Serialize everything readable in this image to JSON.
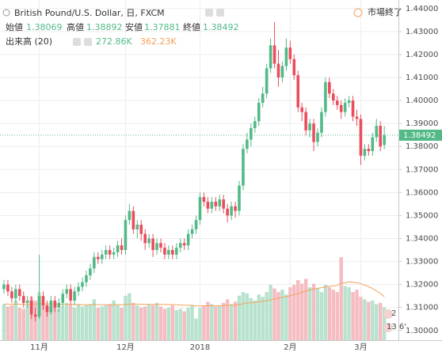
{
  "chart_data": {
    "type": "candlestick",
    "title": "British Pound/U.S. Dollar, 日, FXCM",
    "ohlc_labels": {
      "open": "始値",
      "high": "高値",
      "low": "安値",
      "close": "終値"
    },
    "volume_title": "出来高 (20)",
    "volume_last_label": "272.86K",
    "volume_ma_last_label": "362.23K",
    "status": "市場終了",
    "event_labels": [
      "2",
      "13 6'"
    ],
    "categories": [
      null,
      null,
      null,
      null,
      null,
      null,
      null,
      null,
      null,
      "11月",
      null,
      null,
      null,
      null,
      null,
      null,
      null,
      null,
      null,
      null,
      null,
      null,
      null,
      null,
      null,
      null,
      null,
      null,
      null,
      null,
      null,
      "12月",
      null,
      null,
      null,
      null,
      null,
      null,
      null,
      null,
      null,
      null,
      null,
      null,
      null,
      null,
      null,
      null,
      null,
      null,
      "2018",
      null,
      null,
      null,
      null,
      null,
      null,
      null,
      null,
      null,
      null,
      null,
      null,
      null,
      null,
      null,
      null,
      null,
      null,
      null,
      null,
      null,
      null,
      "2月",
      null,
      null,
      null,
      null,
      null,
      null,
      null,
      null,
      null,
      null,
      null,
      null,
      null,
      null,
      null,
      null,
      null,
      "3月",
      null,
      null,
      null,
      null,
      null,
      null
    ],
    "open": [
      1.318,
      1.32,
      1.317,
      1.314,
      1.318,
      1.315,
      1.312,
      1.313,
      1.307,
      1.306,
      1.315,
      1.311,
      1.308,
      1.313,
      1.31,
      1.312,
      1.316,
      1.318,
      1.313,
      1.317,
      1.319,
      1.321,
      1.324,
      1.327,
      1.332,
      1.331,
      1.333,
      1.335,
      1.333,
      1.334,
      1.337,
      1.335,
      1.348,
      1.352,
      1.344,
      1.346,
      1.342,
      1.338,
      1.34,
      1.335,
      1.338,
      1.336,
      1.333,
      1.335,
      1.333,
      1.336,
      1.338,
      1.337,
      1.342,
      1.344,
      1.348,
      1.358,
      1.356,
      1.353,
      1.356,
      1.354,
      1.357,
      1.353,
      1.35,
      1.354,
      1.352,
      1.363,
      1.379,
      1.383,
      1.388,
      1.391,
      1.399,
      1.403,
      1.414,
      1.424,
      1.416,
      1.41,
      1.415,
      1.423,
      1.418,
      1.411,
      1.397,
      1.395,
      1.387,
      1.39,
      1.382,
      1.386,
      1.395,
      1.408,
      1.403,
      1.4,
      1.398,
      1.395,
      1.399,
      1.4,
      1.393,
      1.392,
      1.376,
      1.379,
      1.378,
      1.384,
      1.389,
      1.38069
    ],
    "high": [
      1.322,
      1.322,
      1.319,
      1.32,
      1.32,
      1.317,
      1.315,
      1.315,
      1.31,
      1.333,
      1.317,
      1.313,
      1.315,
      1.315,
      1.314,
      1.318,
      1.32,
      1.32,
      1.319,
      1.321,
      1.323,
      1.326,
      1.329,
      1.334,
      1.334,
      1.335,
      1.337,
      1.337,
      1.336,
      1.339,
      1.34,
      1.35,
      1.355,
      1.354,
      1.348,
      1.348,
      1.344,
      1.342,
      1.342,
      1.34,
      1.34,
      1.338,
      1.337,
      1.337,
      1.338,
      1.34,
      1.34,
      1.344,
      1.346,
      1.35,
      1.36,
      1.36,
      1.358,
      1.358,
      1.358,
      1.359,
      1.359,
      1.355,
      1.356,
      1.356,
      1.365,
      1.381,
      1.386,
      1.39,
      1.393,
      1.401,
      1.406,
      1.416,
      1.427,
      1.434,
      1.422,
      1.417,
      1.427,
      1.426,
      1.42,
      1.413,
      1.399,
      1.397,
      1.392,
      1.392,
      1.388,
      1.397,
      1.41,
      1.41,
      1.405,
      1.402,
      1.4,
      1.401,
      1.402,
      1.402,
      1.396,
      1.394,
      1.381,
      1.381,
      1.386,
      1.392,
      1.391,
      1.38892
    ],
    "low": [
      1.316,
      1.315,
      1.312,
      1.312,
      1.313,
      1.31,
      1.31,
      1.305,
      1.304,
      1.305,
      1.309,
      1.306,
      1.307,
      1.308,
      1.308,
      1.31,
      1.314,
      1.311,
      1.311,
      1.315,
      1.317,
      1.319,
      1.322,
      1.325,
      1.329,
      1.329,
      1.331,
      1.331,
      1.331,
      1.332,
      1.333,
      1.333,
      1.346,
      1.342,
      1.34,
      1.339,
      1.335,
      1.336,
      1.332,
      1.333,
      1.334,
      1.331,
      1.331,
      1.331,
      1.331,
      1.334,
      1.335,
      1.335,
      1.34,
      1.342,
      1.346,
      1.354,
      1.351,
      1.351,
      1.352,
      1.352,
      1.351,
      1.347,
      1.348,
      1.349,
      1.35,
      1.361,
      1.377,
      1.38,
      1.386,
      1.389,
      1.397,
      1.401,
      1.412,
      1.414,
      1.406,
      1.408,
      1.413,
      1.416,
      1.409,
      1.395,
      1.391,
      1.385,
      1.384,
      1.378,
      1.38,
      1.384,
      1.393,
      1.401,
      1.398,
      1.396,
      1.392,
      1.393,
      1.397,
      1.391,
      1.389,
      1.372,
      1.374,
      1.376,
      1.376,
      1.382,
      1.378,
      1.37881
    ],
    "close": [
      1.32,
      1.317,
      1.314,
      1.318,
      1.315,
      1.312,
      1.313,
      1.307,
      1.306,
      1.315,
      1.311,
      1.308,
      1.313,
      1.31,
      1.312,
      1.316,
      1.318,
      1.313,
      1.317,
      1.319,
      1.321,
      1.324,
      1.327,
      1.332,
      1.331,
      1.333,
      1.335,
      1.333,
      1.334,
      1.337,
      1.335,
      1.348,
      1.352,
      1.344,
      1.346,
      1.342,
      1.338,
      1.34,
      1.335,
      1.338,
      1.336,
      1.333,
      1.335,
      1.333,
      1.336,
      1.338,
      1.337,
      1.342,
      1.344,
      1.348,
      1.358,
      1.356,
      1.353,
      1.356,
      1.354,
      1.357,
      1.353,
      1.35,
      1.354,
      1.352,
      1.363,
      1.379,
      1.383,
      1.388,
      1.391,
      1.399,
      1.403,
      1.414,
      1.424,
      1.416,
      1.41,
      1.415,
      1.423,
      1.418,
      1.411,
      1.397,
      1.395,
      1.387,
      1.39,
      1.382,
      1.386,
      1.395,
      1.408,
      1.403,
      1.4,
      1.398,
      1.395,
      1.399,
      1.4,
      1.393,
      1.392,
      1.376,
      1.379,
      1.378,
      1.384,
      1.389,
      1.38,
      1.38492
    ],
    "volume": [
      300,
      280,
      290,
      330,
      270,
      260,
      290,
      360,
      330,
      400,
      300,
      280,
      270,
      290,
      260,
      280,
      310,
      290,
      270,
      300,
      280,
      290,
      300,
      340,
      270,
      280,
      290,
      300,
      330,
      290,
      270,
      370,
      390,
      310,
      290,
      270,
      280,
      300,
      290,
      310,
      280,
      260,
      270,
      290,
      250,
      260,
      240,
      270,
      290,
      180,
      270,
      290,
      320,
      300,
      280,
      290,
      310,
      340,
      300,
      320,
      370,
      400,
      390,
      350,
      330,
      380,
      360,
      400,
      460,
      430,
      400,
      420,
      380,
      440,
      460,
      500,
      470,
      510,
      440,
      470,
      430,
      400,
      460,
      440,
      420,
      400,
      690,
      450,
      440,
      400,
      420,
      360,
      340,
      320,
      330,
      300,
      310,
      272.86
    ],
    "volume_ma": [
      300,
      300,
      299,
      300,
      299,
      298,
      298,
      300,
      301,
      303,
      303,
      302,
      301,
      300,
      299,
      298,
      298,
      297,
      297,
      296,
      295,
      294,
      294,
      296,
      295,
      294,
      294,
      294,
      295,
      295,
      294,
      297,
      300,
      300,
      300,
      299,
      298,
      298,
      297,
      298,
      298,
      297,
      296,
      296,
      294,
      293,
      291,
      290,
      290,
      286,
      285,
      285,
      286,
      286,
      286,
      287,
      288,
      290,
      290,
      292,
      297,
      303,
      309,
      312,
      314,
      319,
      323,
      328,
      336,
      342,
      349,
      357,
      362,
      369,
      378,
      388,
      398,
      409,
      418,
      426,
      432,
      437,
      443,
      447,
      451,
      456,
      472,
      478,
      485,
      482,
      478,
      470,
      458,
      445,
      430,
      410,
      390,
      362.23
    ],
    "ylim": [
      1.2958,
      1.4437
    ],
    "yticks": [
      {
        "value": 1.3,
        "label": "1.30000"
      },
      {
        "value": 1.31,
        "label": "1.31000"
      },
      {
        "value": 1.32,
        "label": "1.32000"
      },
      {
        "value": 1.33,
        "label": "1.33000"
      },
      {
        "value": 1.34,
        "label": "1.34000"
      },
      {
        "value": 1.35,
        "label": "1.35000"
      },
      {
        "value": 1.36,
        "label": "1.36000"
      },
      {
        "value": 1.37,
        "label": "1.37000"
      },
      {
        "value": 1.38,
        "label": "1.38000"
      },
      {
        "value": 1.39,
        "label": "1.39000"
      },
      {
        "value": 1.4,
        "label": "1.40000"
      },
      {
        "value": 1.41,
        "label": "1.41000"
      },
      {
        "value": 1.42,
        "label": "1.42000"
      },
      {
        "value": 1.43,
        "label": "1.43000"
      },
      {
        "value": 1.44,
        "label": "1.44000"
      }
    ],
    "grid": true,
    "up_color": "#53b987",
    "down_color": "#eb4d5c",
    "volume_up_color": "#b7e2cd",
    "volume_down_color": "#f5bcc1",
    "ma_color": "#f5a15a"
  }
}
